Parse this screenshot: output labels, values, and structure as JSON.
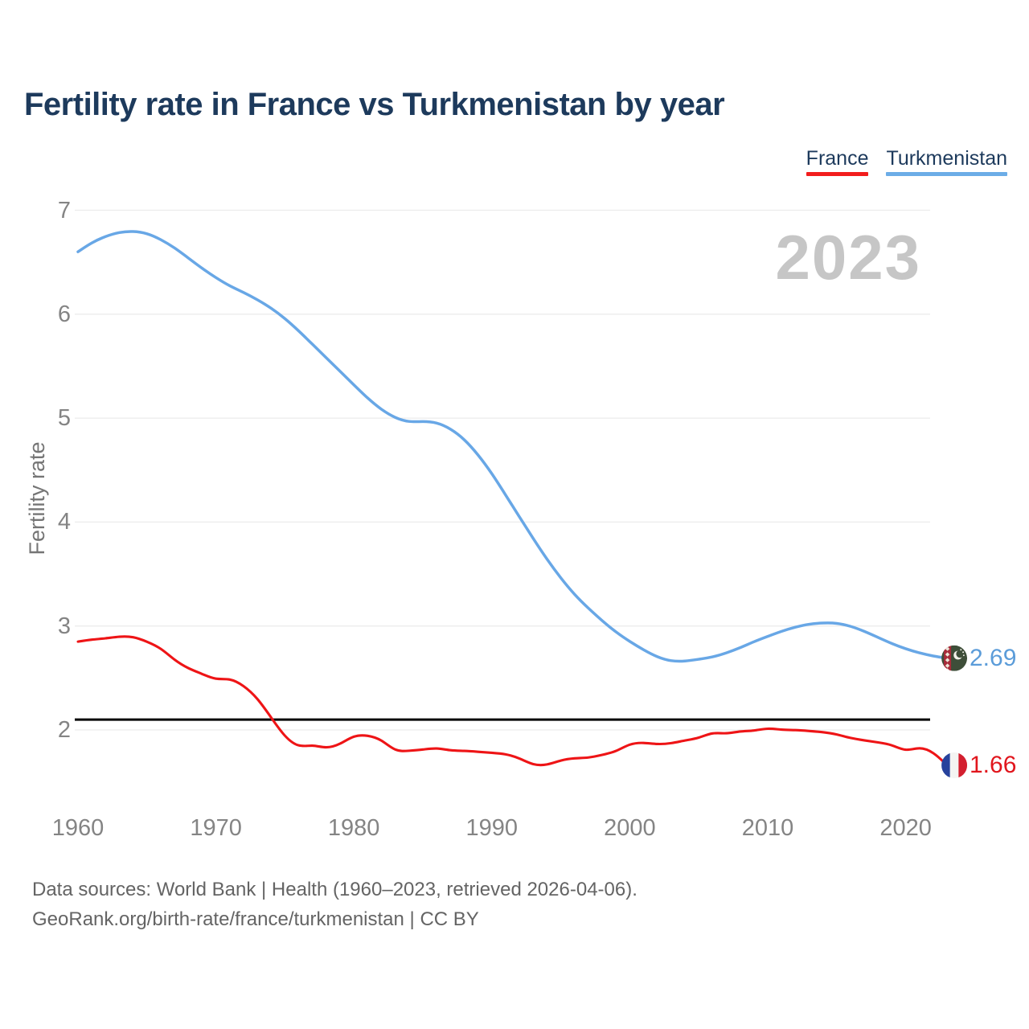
{
  "title": "Fertility rate in France vs Turkmenistan by year",
  "watermark_year": "2023",
  "legend": {
    "items": [
      {
        "label": "France",
        "color": "#f21d1d"
      },
      {
        "label": "Turkmenistan",
        "color": "#6cade7"
      }
    ]
  },
  "y_axis": {
    "label": "Fertility rate"
  },
  "footer": {
    "line1": "Data sources: World Bank | Health (1960–2023, retrieved 2026-04-06).",
    "line2": "GeoRank.org/birth-rate/france/turkmenistan | CC BY"
  },
  "chart_data": {
    "type": "line",
    "title": "Fertility rate in France vs Turkmenistan by year",
    "ylabel": "Fertility rate",
    "grid": "horizontal",
    "legend_position": "top-right",
    "xticks": [
      1960,
      1970,
      1980,
      1990,
      2000,
      2010,
      2020
    ],
    "yticks": [
      2,
      3,
      4,
      5,
      6,
      7
    ],
    "ylim": [
      1.5,
      7.05
    ],
    "xlim": [
      1960,
      2023
    ],
    "reference_line": 2.1,
    "reference_line_color": "#000000",
    "years": [
      1960,
      1961,
      1962,
      1963,
      1964,
      1965,
      1966,
      1967,
      1968,
      1969,
      1970,
      1971,
      1972,
      1973,
      1974,
      1975,
      1976,
      1977,
      1978,
      1979,
      1980,
      1981,
      1982,
      1983,
      1984,
      1985,
      1986,
      1987,
      1988,
      1989,
      1990,
      1991,
      1992,
      1993,
      1994,
      1995,
      1996,
      1997,
      1998,
      1999,
      2000,
      2001,
      2002,
      2003,
      2004,
      2005,
      2006,
      2007,
      2008,
      2009,
      2010,
      2011,
      2012,
      2013,
      2014,
      2015,
      2016,
      2017,
      2018,
      2019,
      2020,
      2021,
      2022,
      2023
    ],
    "series": [
      {
        "name": "Turkmenistan",
        "color": "#68a7e6",
        "label_color": "#5b9cd9",
        "end_label": "2.69",
        "flag": "turkmenistan",
        "values": [
          6.6,
          6.69,
          6.75,
          6.79,
          6.8,
          6.78,
          6.72,
          6.64,
          6.54,
          6.44,
          6.35,
          6.27,
          6.21,
          6.14,
          6.06,
          5.96,
          5.84,
          5.71,
          5.58,
          5.45,
          5.32,
          5.19,
          5.08,
          5.0,
          4.96,
          4.97,
          4.96,
          4.9,
          4.8,
          4.65,
          4.47,
          4.26,
          4.05,
          3.84,
          3.64,
          3.46,
          3.3,
          3.17,
          3.05,
          2.94,
          2.85,
          2.77,
          2.7,
          2.66,
          2.66,
          2.68,
          2.7,
          2.74,
          2.79,
          2.85,
          2.9,
          2.95,
          2.99,
          3.02,
          3.03,
          3.03,
          3.0,
          2.95,
          2.89,
          2.83,
          2.78,
          2.74,
          2.71,
          2.69
        ]
      },
      {
        "name": "France",
        "color": "#ee1416",
        "label_color": "#e1161d",
        "end_label": "1.66",
        "flag": "france",
        "values": [
          2.85,
          2.87,
          2.88,
          2.9,
          2.9,
          2.85,
          2.79,
          2.67,
          2.59,
          2.54,
          2.48,
          2.5,
          2.43,
          2.31,
          2.12,
          1.93,
          1.83,
          1.86,
          1.82,
          1.86,
          1.95,
          1.95,
          1.91,
          1.79,
          1.8,
          1.81,
          1.83,
          1.8,
          1.8,
          1.79,
          1.78,
          1.77,
          1.73,
          1.66,
          1.66,
          1.71,
          1.73,
          1.73,
          1.76,
          1.79,
          1.87,
          1.88,
          1.86,
          1.87,
          1.9,
          1.92,
          1.98,
          1.96,
          1.99,
          1.99,
          2.02,
          2.0,
          2.0,
          1.99,
          1.98,
          1.96,
          1.92,
          1.9,
          1.88,
          1.86,
          1.79,
          1.84,
          1.79,
          1.66
        ]
      }
    ]
  }
}
